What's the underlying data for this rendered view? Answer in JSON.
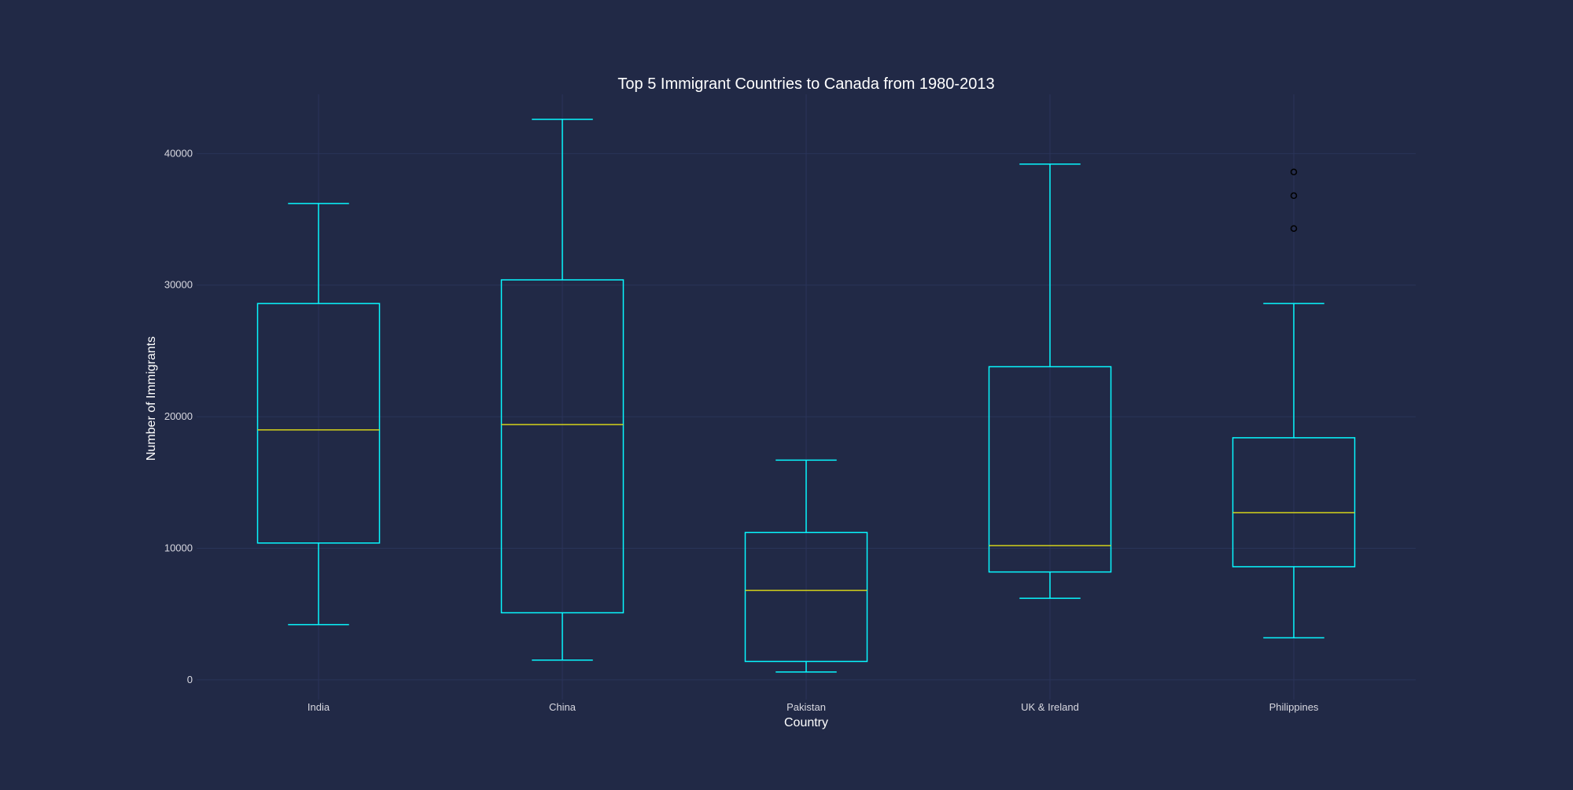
{
  "chart_data": {
    "type": "box",
    "title": "Top 5 Immigrant Countries to Canada from 1980-2013",
    "xlabel": "Country",
    "ylabel": "Number of Immigrants",
    "ylim": [
      -1500,
      44500
    ],
    "yticks": [
      0,
      10000,
      20000,
      30000,
      40000
    ],
    "grid": true,
    "colors": {
      "background": "#212946",
      "grid": "#2A3459",
      "box": "#08F7FE",
      "median": "#D4D21A",
      "text": "#E6E6F0",
      "ticks": "#D8D8E0",
      "flier": "#000000"
    },
    "categories": [
      "India",
      "China",
      "Pakistan",
      "UK & Ireland",
      "Philippines"
    ],
    "boxes": [
      {
        "whislo": 4200,
        "q1": 10400,
        "med": 19000,
        "q3": 28600,
        "whishi": 36200,
        "fliers": []
      },
      {
        "whislo": 1500,
        "q1": 5100,
        "med": 19400,
        "q3": 30400,
        "whishi": 42600,
        "fliers": []
      },
      {
        "whislo": 600,
        "q1": 1400,
        "med": 6800,
        "q3": 11200,
        "whishi": 16700,
        "fliers": []
      },
      {
        "whislo": 6200,
        "q1": 8200,
        "med": 10200,
        "q3": 23800,
        "whishi": 39200,
        "fliers": []
      },
      {
        "whislo": 3200,
        "q1": 8600,
        "med": 12700,
        "q3": 18400,
        "whishi": 28600,
        "fliers": [
          34300,
          36800,
          38600
        ]
      }
    ]
  }
}
